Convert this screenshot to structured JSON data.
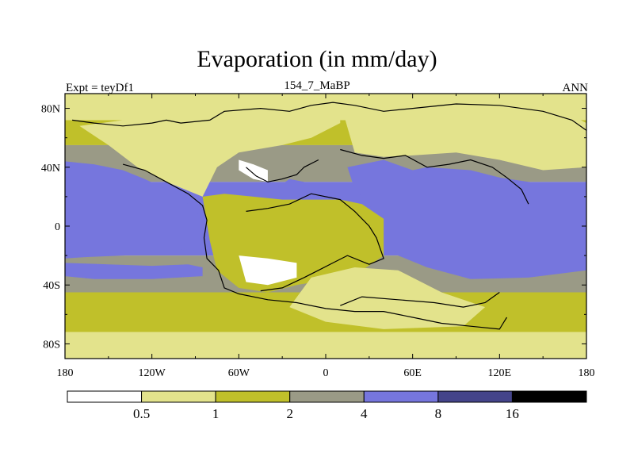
{
  "chart_data": {
    "type": "heatmap",
    "title": "Evaporation (in mm/day)",
    "left_string": "Expt = teyDf1",
    "center_string": "154_7_MaBP",
    "right_string": "ANN",
    "x_ticks": [
      {
        "value": -180,
        "label": "180"
      },
      {
        "value": -120,
        "label": "120W"
      },
      {
        "value": -60,
        "label": "60W"
      },
      {
        "value": 0,
        "label": "0"
      },
      {
        "value": 60,
        "label": "60E"
      },
      {
        "value": 120,
        "label": "120E"
      },
      {
        "value": 180,
        "label": "180"
      }
    ],
    "y_ticks": [
      {
        "value": 80,
        "label": "80N"
      },
      {
        "value": 40,
        "label": "40N"
      },
      {
        "value": 0,
        "label": "0"
      },
      {
        "value": -40,
        "label": "40S"
      },
      {
        "value": -80,
        "label": "80S"
      }
    ],
    "xlim": [
      -180,
      180
    ],
    "ylim": [
      -90,
      90
    ],
    "colorbar": {
      "levels": [
        "0.5",
        "1",
        "2",
        "4",
        "8",
        "16"
      ],
      "colors": [
        "#ffffff",
        "#e3e38c",
        "#c0c02a",
        "#9a9a86",
        "#7676dd",
        "#44448a",
        "#000000"
      ]
    },
    "background_field": {
      "legend_index": [
        1,
        2,
        3,
        4,
        3,
        2,
        1
      ],
      "lat_bands": [
        90,
        72,
        55,
        30,
        -20,
        -45,
        -72,
        -90
      ]
    },
    "regions": [
      {
        "name": "tropical ocean",
        "level_index": 4,
        "points": [
          [
            -180,
            44
          ],
          [
            -160,
            42
          ],
          [
            -140,
            38
          ],
          [
            -125,
            32
          ],
          [
            -112,
            26
          ],
          [
            -100,
            20
          ],
          [
            -92,
            12
          ],
          [
            -85,
            5
          ],
          [
            -85,
            -8
          ],
          [
            -90,
            -14
          ],
          [
            -110,
            -18
          ],
          [
            -140,
            -20
          ],
          [
            -165,
            -21
          ],
          [
            -180,
            -22
          ]
        ]
      },
      {
        "name": "south ocean",
        "level_index": 4,
        "points": [
          [
            -180,
            -25
          ],
          [
            -150,
            -26
          ],
          [
            -120,
            -27
          ],
          [
            -95,
            -26
          ],
          [
            -85,
            -28
          ],
          [
            -85,
            -34
          ],
          [
            -120,
            -36
          ],
          [
            -160,
            -36
          ],
          [
            -180,
            -34
          ]
        ]
      },
      {
        "name": "tethys ocean",
        "level_index": 4,
        "points": [
          [
            15,
            40
          ],
          [
            40,
            45
          ],
          [
            60,
            38
          ],
          [
            70,
            40
          ],
          [
            100,
            38
          ],
          [
            120,
            33
          ],
          [
            140,
            30
          ],
          [
            160,
            28
          ],
          [
            180,
            30
          ],
          [
            180,
            -30
          ],
          [
            140,
            -35
          ],
          [
            100,
            -36
          ],
          [
            70,
            -28
          ],
          [
            50,
            -20
          ],
          [
            40,
            -5
          ],
          [
            30,
            15
          ],
          [
            20,
            25
          ]
        ]
      },
      {
        "name": "proto atlantic",
        "level_index": 4,
        "points": [
          [
            -60,
            25
          ],
          [
            -45,
            22
          ],
          [
            -35,
            25
          ],
          [
            -25,
            32
          ],
          [
            -15,
            30
          ],
          [
            -10,
            20
          ],
          [
            -25,
            15
          ],
          [
            -40,
            12
          ],
          [
            -55,
            15
          ]
        ]
      },
      {
        "name": "north america",
        "level_index": 1,
        "points": [
          [
            -170,
            68
          ],
          [
            -140,
            72
          ],
          [
            -100,
            75
          ],
          [
            -60,
            78
          ],
          [
            -40,
            80
          ],
          [
            -20,
            82
          ],
          [
            10,
            84
          ],
          [
            10,
            70
          ],
          [
            -10,
            60
          ],
          [
            -30,
            55
          ],
          [
            -60,
            50
          ],
          [
            -75,
            40
          ],
          [
            -80,
            30
          ],
          [
            -85,
            20
          ],
          [
            -110,
            30
          ],
          [
            -130,
            40
          ],
          [
            -150,
            55
          ]
        ]
      },
      {
        "name": "eurasia",
        "level_index": 1,
        "points": [
          [
            10,
            84
          ],
          [
            60,
            82
          ],
          [
            100,
            83
          ],
          [
            140,
            80
          ],
          [
            170,
            75
          ],
          [
            180,
            70
          ],
          [
            180,
            40
          ],
          [
            150,
            38
          ],
          [
            120,
            45
          ],
          [
            90,
            50
          ],
          [
            60,
            48
          ],
          [
            40,
            47
          ],
          [
            20,
            50
          ]
        ]
      },
      {
        "name": "south america africa",
        "level_index": 2,
        "points": [
          [
            -85,
            20
          ],
          [
            -70,
            22
          ],
          [
            -50,
            20
          ],
          [
            -30,
            18
          ],
          [
            -10,
            18
          ],
          [
            10,
            18
          ],
          [
            25,
            15
          ],
          [
            40,
            5
          ],
          [
            40,
            -20
          ],
          [
            25,
            -30
          ],
          [
            10,
            -35
          ],
          [
            -20,
            -40
          ],
          [
            -40,
            -45
          ],
          [
            -60,
            -42
          ],
          [
            -75,
            -30
          ],
          [
            -80,
            -10
          ]
        ]
      },
      {
        "name": "arid southern continent",
        "level_index": 0,
        "points": [
          [
            -60,
            -20
          ],
          [
            -40,
            -22
          ],
          [
            -20,
            -25
          ],
          [
            -20,
            -35
          ],
          [
            -40,
            -40
          ],
          [
            -55,
            -38
          ]
        ]
      },
      {
        "name": "arid northern continent",
        "level_index": 0,
        "points": [
          [
            -60,
            45
          ],
          [
            -50,
            42
          ],
          [
            -40,
            38
          ],
          [
            -40,
            30
          ],
          [
            -50,
            32
          ],
          [
            -60,
            38
          ]
        ]
      },
      {
        "name": "southern continent east",
        "level_index": 1,
        "points": [
          [
            -10,
            -35
          ],
          [
            20,
            -28
          ],
          [
            50,
            -30
          ],
          [
            80,
            -45
          ],
          [
            110,
            -55
          ],
          [
            95,
            -68
          ],
          [
            40,
            -70
          ],
          [
            0,
            -65
          ],
          [
            -25,
            -55
          ]
        ]
      }
    ],
    "coastlines": [
      [
        [
          -175,
          72
        ],
        [
          -160,
          70
        ],
        [
          -140,
          68
        ],
        [
          -120,
          70
        ],
        [
          -110,
          72
        ],
        [
          -100,
          70
        ],
        [
          -80,
          72
        ],
        [
          -70,
          78
        ],
        [
          -45,
          80
        ],
        [
          -25,
          78
        ],
        [
          -10,
          82
        ],
        [
          5,
          84
        ],
        [
          20,
          82
        ],
        [
          40,
          78
        ],
        [
          60,
          80
        ],
        [
          90,
          83
        ],
        [
          120,
          82
        ],
        [
          150,
          78
        ],
        [
          170,
          72
        ],
        [
          180,
          65
        ]
      ],
      [
        [
          -140,
          42
        ],
        [
          -125,
          38
        ],
        [
          -110,
          30
        ],
        [
          -95,
          22
        ],
        [
          -85,
          14
        ],
        [
          -82,
          4
        ],
        [
          -84,
          -8
        ],
        [
          -82,
          -22
        ],
        [
          -74,
          -30
        ],
        [
          -70,
          -42
        ],
        [
          -60,
          -46
        ],
        [
          -40,
          -50
        ],
        [
          -20,
          -52
        ],
        [
          0,
          -56
        ],
        [
          20,
          -58
        ],
        [
          40,
          -58
        ],
        [
          60,
          -62
        ],
        [
          80,
          -66
        ],
        [
          100,
          -68
        ],
        [
          120,
          -70
        ],
        [
          125,
          -62
        ]
      ],
      [
        [
          10,
          -54
        ],
        [
          25,
          -48
        ],
        [
          50,
          -50
        ],
        [
          75,
          -52
        ],
        [
          95,
          -55
        ],
        [
          110,
          -52
        ],
        [
          120,
          -45
        ]
      ],
      [
        [
          -55,
          40
        ],
        [
          -48,
          34
        ],
        [
          -40,
          30
        ],
        [
          -30,
          32
        ],
        [
          -20,
          35
        ],
        [
          -15,
          40
        ],
        [
          -5,
          45
        ]
      ],
      [
        [
          -55,
          10
        ],
        [
          -40,
          12
        ],
        [
          -25,
          15
        ],
        [
          -10,
          22
        ],
        [
          10,
          18
        ],
        [
          20,
          10
        ],
        [
          30,
          0
        ],
        [
          35,
          -8
        ],
        [
          40,
          -22
        ],
        [
          30,
          -26
        ],
        [
          15,
          -20
        ],
        [
          5,
          -25
        ],
        [
          -5,
          -30
        ],
        [
          -15,
          -35
        ],
        [
          -30,
          -42
        ],
        [
          -45,
          -44
        ]
      ],
      [
        [
          10,
          52
        ],
        [
          25,
          48
        ],
        [
          40,
          46
        ],
        [
          55,
          48
        ],
        [
          70,
          40
        ],
        [
          85,
          42
        ],
        [
          100,
          45
        ],
        [
          115,
          40
        ],
        [
          125,
          33
        ],
        [
          135,
          25
        ],
        [
          140,
          15
        ]
      ]
    ]
  }
}
